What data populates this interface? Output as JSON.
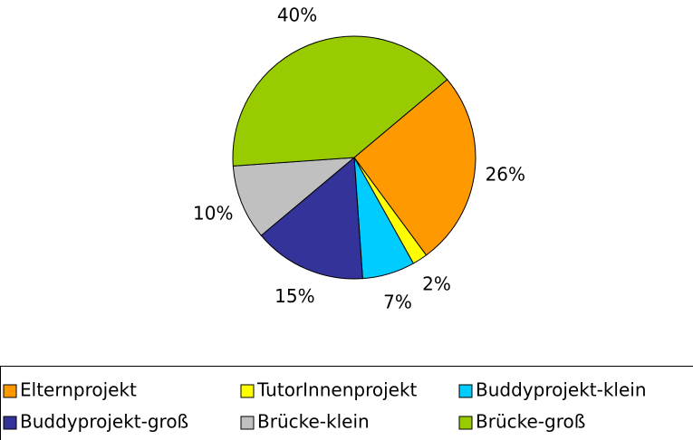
{
  "chart_data": {
    "type": "pie",
    "categories": [
      "Elternprojekt",
      "TutorInnenprojekt",
      "Buddyprojekt-klein",
      "Buddyprojekt-groß",
      "Brücke-klein",
      "Brücke-groß"
    ],
    "values": [
      26,
      2,
      7,
      15,
      10,
      40
    ],
    "colors": [
      "#ff9900",
      "#ffff00",
      "#00ccff",
      "#333399",
      "#c0c0c0",
      "#99cc00"
    ],
    "value_labels": [
      "26%",
      "2%",
      "7%",
      "15%",
      "10%",
      "40%"
    ]
  }
}
